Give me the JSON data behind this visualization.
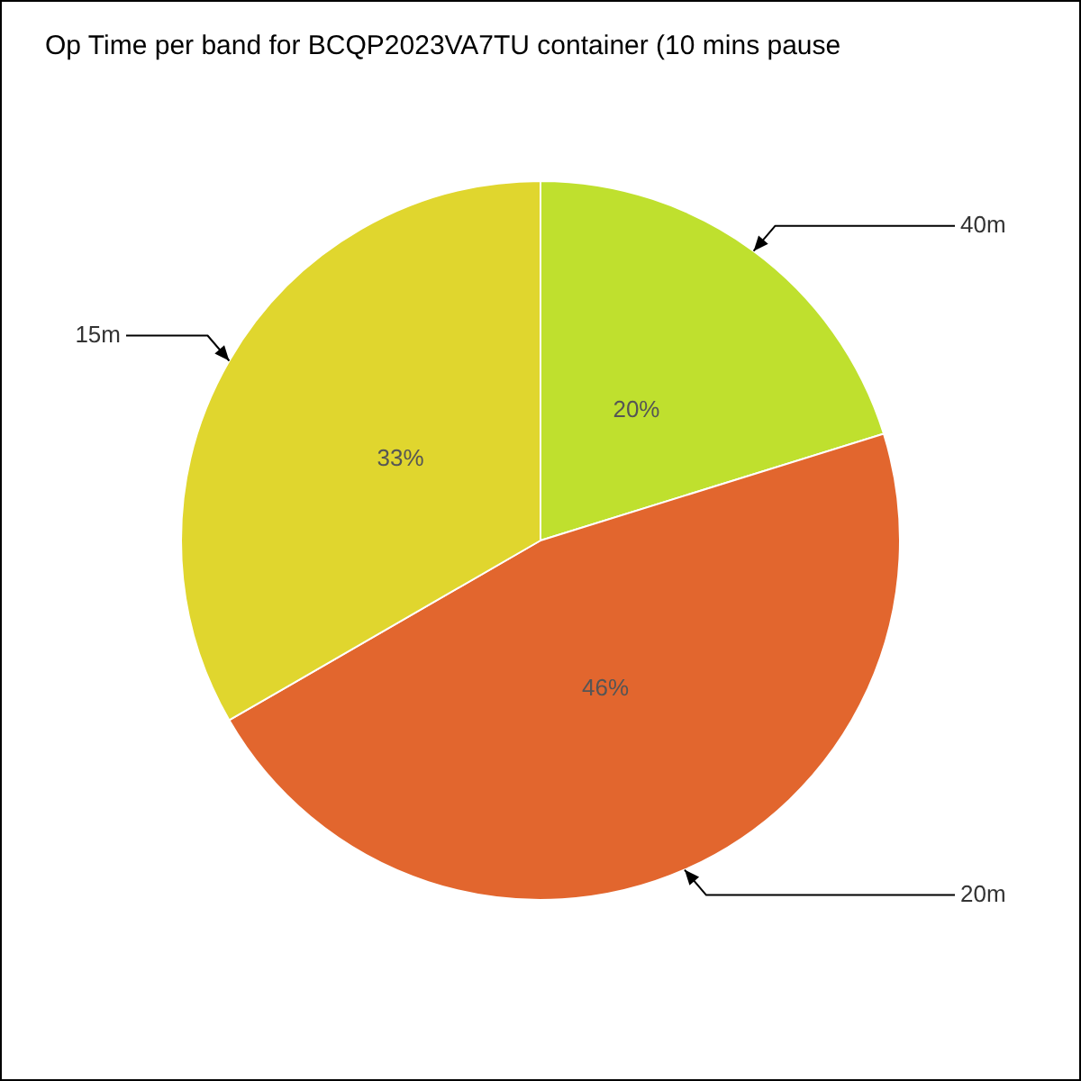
{
  "chart_data": {
    "type": "pie",
    "title": "Op Time per band for BCQP2023VA7TU container (10 mins pause",
    "categories": [
      "40m",
      "20m",
      "15m"
    ],
    "values": [
      20,
      46,
      33
    ],
    "colors": [
      "#bfe02e",
      "#e2662e",
      "#e0d62e"
    ],
    "value_labels": [
      "20%",
      "46%",
      "33%"
    ],
    "legend": false
  }
}
